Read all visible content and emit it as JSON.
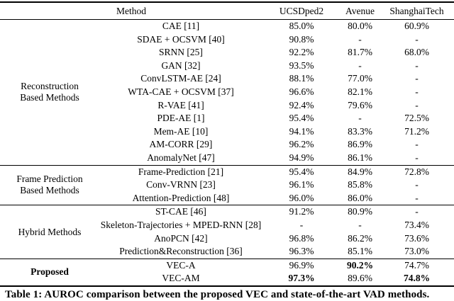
{
  "table": {
    "header": {
      "method": "Method",
      "ucsdped2": "UCSDped2",
      "avenue": "Avenue",
      "shanghaitech": "ShanghaiTech"
    },
    "groups": [
      {
        "label": "Reconstruction Based Methods",
        "rows": [
          {
            "method": "CAE [11]",
            "ucsdped2": "85.0%",
            "avenue": "80.0%",
            "shanghaitech": "60.9%"
          },
          {
            "method": "SDAE + OCSVM [40]",
            "ucsdped2": "90.8%",
            "avenue": "-",
            "shanghaitech": "-"
          },
          {
            "method": "SRNN [25]",
            "ucsdped2": "92.2%",
            "avenue": "81.7%",
            "shanghaitech": "68.0%"
          },
          {
            "method": "GAN [32]",
            "ucsdped2": "93.5%",
            "avenue": "-",
            "shanghaitech": "-"
          },
          {
            "method": "ConvLSTM-AE [24]",
            "ucsdped2": "88.1%",
            "avenue": "77.0%",
            "shanghaitech": "-"
          },
          {
            "method": "WTA-CAE + OCSVM [37]",
            "ucsdped2": "96.6%",
            "avenue": "82.1%",
            "shanghaitech": "-"
          },
          {
            "method": "R-VAE [41]",
            "ucsdped2": "92.4%",
            "avenue": "79.6%",
            "shanghaitech": "-"
          },
          {
            "method": "PDE-AE [1]",
            "ucsdped2": "95.4%",
            "avenue": "-",
            "shanghaitech": "72.5%"
          },
          {
            "method": "Mem-AE [10]",
            "ucsdped2": "94.1%",
            "avenue": "83.3%",
            "shanghaitech": "71.2%"
          },
          {
            "method": "AM-CORR [29]",
            "ucsdped2": "96.2%",
            "avenue": "86.9%",
            "shanghaitech": "-"
          },
          {
            "method": "AnomalyNet [47]",
            "ucsdped2": "94.9%",
            "avenue": "86.1%",
            "shanghaitech": "-"
          }
        ]
      },
      {
        "label": "Frame Prediction Based Methods",
        "rows": [
          {
            "method": "Frame-Prediction [21]",
            "ucsdped2": "95.4%",
            "avenue": "84.9%",
            "shanghaitech": "72.8%"
          },
          {
            "method": "Conv-VRNN [23]",
            "ucsdped2": "96.1%",
            "avenue": "85.8%",
            "shanghaitech": "-"
          },
          {
            "method": "Attention-Prediction [48]",
            "ucsdped2": "96.0%",
            "avenue": "86.0%",
            "shanghaitech": "-"
          }
        ]
      },
      {
        "label": "Hybrid Methods",
        "rows": [
          {
            "method": "ST-CAE [46]",
            "ucsdped2": "91.2%",
            "avenue": "80.9%",
            "shanghaitech": "-"
          },
          {
            "method": "Skeleton-Trajectories + MPED-RNN [28]",
            "ucsdped2": "-",
            "avenue": "-",
            "shanghaitech": "73.4%"
          },
          {
            "method": "AnoPCN [42]",
            "ucsdped2": "96.8%",
            "avenue": "86.2%",
            "shanghaitech": "73.6%"
          },
          {
            "method": "Prediction&Reconstruction [36]",
            "ucsdped2": "96.3%",
            "avenue": "85.1%",
            "shanghaitech": "73.0%"
          }
        ]
      },
      {
        "label": "Proposed",
        "rows": [
          {
            "method": "VEC-A",
            "ucsdped2": "96.9%",
            "avenue": "90.2%",
            "shanghaitech": "74.7%"
          },
          {
            "method": "VEC-AM",
            "ucsdped2": "97.3%",
            "avenue": "89.6%",
            "shanghaitech": "74.8%"
          }
        ]
      }
    ]
  },
  "caption": "Table 1: AUROC comparison between the proposed VEC and state-of-the-art VAD methods."
}
